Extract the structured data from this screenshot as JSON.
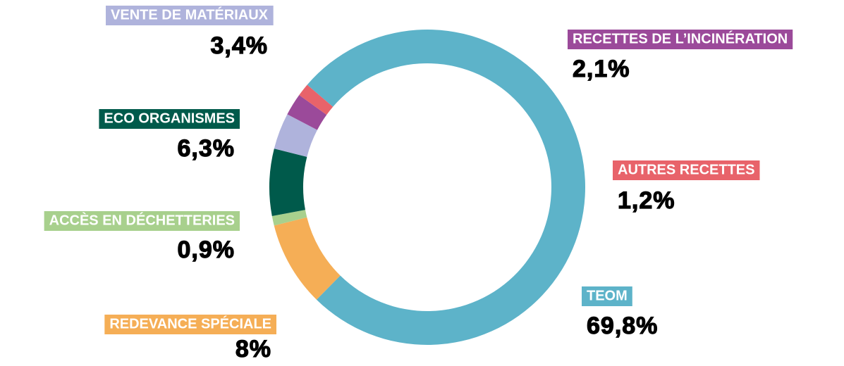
{
  "chart_data": {
    "type": "donut",
    "categories": [
      "TEOM",
      "REDEVANCE SPÉCIALE",
      "ACCÈS EN DÉCHETTERIES",
      "ECO ORGANISMES",
      "VENTE DE MATÉRIAUX",
      "RECETTES DE L’INCINÉRATION",
      "AUTRES RECETTES"
    ],
    "values": [
      69.8,
      8,
      0.9,
      6.3,
      3.4,
      2.1,
      1.2
    ],
    "value_labels": [
      "69,8%",
      "8%",
      "0,9%",
      "6,3%",
      "3,4%",
      "2,1%",
      "1,2%"
    ],
    "colors": [
      "#5db3c9",
      "#f5ae56",
      "#a8d08d",
      "#005a4b",
      "#afb3dc",
      "#9b4a9a",
      "#e8636a"
    ]
  }
}
